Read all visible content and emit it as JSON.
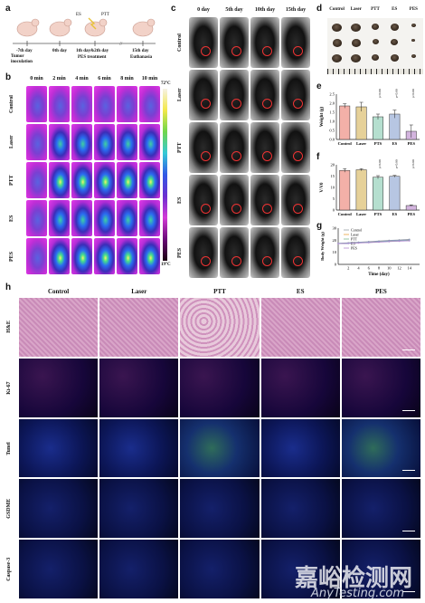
{
  "panels": {
    "a": "a",
    "b": "b",
    "c": "c",
    "d": "d",
    "e": "e",
    "f": "f",
    "g": "g",
    "h": "h"
  },
  "timeline": {
    "t1_day": "-7th day",
    "t1_desc1": "Tumor",
    "t1_desc2": "inoculation",
    "t2_day": "0th day",
    "t3_top": "ES",
    "t3_top2": "PTT",
    "t3_day": "1th day&2th day",
    "t3_desc": "PES treatment",
    "t4_day": "15th day",
    "t4_desc": "Euthanasia"
  },
  "thermal": {
    "times": [
      "0 min",
      "2 min",
      "4 min",
      "6 min",
      "8 min",
      "10 min"
    ],
    "groups": [
      "Control",
      "Laser",
      "PTT",
      "ES",
      "PES"
    ],
    "scale_max": "72°C",
    "scale_min": "19°C"
  },
  "photos": {
    "days": [
      "0 day",
      "5th day",
      "10th day",
      "15th day"
    ],
    "groups": [
      "Control",
      "Laser",
      "PTT",
      "ES",
      "PES"
    ]
  },
  "tumors": {
    "groups": [
      "Control",
      "Laser",
      "PTT",
      "ES",
      "PES"
    ]
  },
  "chart_data": [
    {
      "type": "bar",
      "panel": "e",
      "categories": [
        "Control",
        "Laser",
        "PTS",
        "ES",
        "PES"
      ],
      "values": [
        1.85,
        1.8,
        1.25,
        1.4,
        0.45
      ],
      "errors": [
        0.12,
        0.25,
        0.15,
        0.22,
        0.35
      ],
      "ylabel": "Weight (g)",
      "ylim": [
        0,
        2.5
      ],
      "yticks": [
        "0.0",
        "0.5",
        "1.0",
        "1.5",
        "2.0",
        "2.5"
      ],
      "annotations": [
        "p<0.001",
        "p<0.001",
        "p<0.001"
      ],
      "colors": [
        "#f3b0a8",
        "#e6d199",
        "#b5dfcf",
        "#b7c6e2",
        "#d3b4de"
      ]
    },
    {
      "type": "bar",
      "panel": "f",
      "categories": [
        "Control",
        "Laser",
        "PTS",
        "ES",
        "PES"
      ],
      "values": [
        17.5,
        17.8,
        14.5,
        14.9,
        2.0
      ],
      "errors": [
        0.8,
        0.5,
        0.7,
        0.4,
        0.3
      ],
      "ylabel": "V/V0",
      "ylim": [
        0,
        20
      ],
      "yticks": [
        "0",
        "5",
        "10",
        "15",
        "20"
      ],
      "annotations": [
        "p<0.001",
        "p<0.001",
        "p<0.001"
      ],
      "colors": [
        "#f3b0a8",
        "#e6d199",
        "#b5dfcf",
        "#b7c6e2",
        "#d3b4de"
      ]
    },
    {
      "type": "line",
      "panel": "g",
      "x": [
        0,
        2,
        4,
        6,
        8,
        10,
        12,
        14
      ],
      "xticks": [
        "2",
        "4",
        "6",
        "8",
        "10",
        "12",
        "14"
      ],
      "xlabel": "Time (day)",
      "ylabel": "Body Weight (g)",
      "ylim": [
        0,
        30
      ],
      "yticks": [
        "0",
        "10",
        "20",
        "30"
      ],
      "series": [
        {
          "name": "Control",
          "color": "#9aa0a6",
          "values": [
            17.5,
            17.9,
            18.4,
            18.9,
            19.4,
            19.9,
            20.3,
            20.8
          ]
        },
        {
          "name": "Laser",
          "color": "#e7a33b",
          "values": [
            17.3,
            17.6,
            18.0,
            18.5,
            18.9,
            19.4,
            19.8,
            20.2
          ]
        },
        {
          "name": "PTT",
          "color": "#7fb98f",
          "values": [
            17.2,
            17.4,
            17.8,
            18.1,
            18.6,
            19.0,
            19.3,
            19.7
          ]
        },
        {
          "name": "ES",
          "color": "#7e94c9",
          "values": [
            17.4,
            17.7,
            18.1,
            18.6,
            19.0,
            19.5,
            19.9,
            20.3
          ]
        },
        {
          "name": "PES",
          "color": "#b58bd1",
          "values": [
            17.1,
            17.3,
            17.7,
            18.0,
            18.4,
            18.8,
            19.2,
            19.5
          ]
        }
      ]
    }
  ],
  "histo": {
    "cols": [
      "Control",
      "Laser",
      "PTT",
      "ES",
      "PES"
    ],
    "rows": [
      "H&E",
      "Ki-67",
      "Tunel",
      "GSDME",
      "Caspase-3"
    ]
  },
  "watermark": {
    "cn": "嘉峪检测网",
    "en": "AnyTesting.com"
  }
}
